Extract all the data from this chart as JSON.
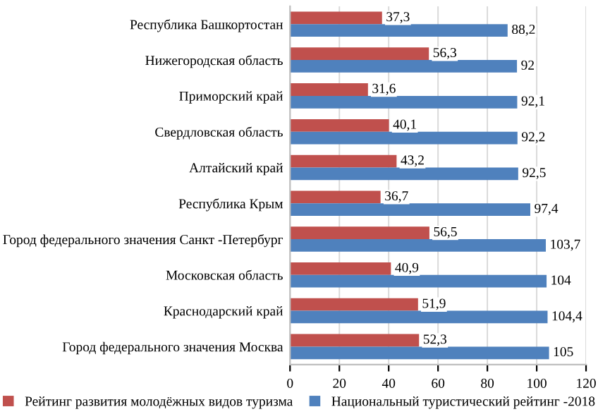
{
  "chart_data": {
    "type": "bar",
    "orientation": "horizontal",
    "categories": [
      "Республика Башкортостан",
      "Нижегородская область",
      "Приморский край",
      "Свердловская область",
      "Алтайский край",
      "Республика Крым",
      "Город федерального значения Санкт -Петербург",
      "Московская область",
      "Краснодарский край",
      "Город федерального значения Москва"
    ],
    "series": [
      {
        "name": "Рейтинг развития молодёжных видов туризма",
        "color": "#c0504d",
        "values": [
          37.3,
          56.3,
          31.6,
          40.1,
          43.2,
          36.7,
          56.5,
          40.9,
          51.9,
          52.3
        ],
        "value_labels": [
          "37,3",
          "56,3",
          "31,6",
          "40,1",
          "43,2",
          "36,7",
          "56,5",
          "40,9",
          "51,9",
          "52,3"
        ]
      },
      {
        "name": "Национальный туристический рейтинг -2018",
        "color": "#4f81bd",
        "values": [
          88.2,
          92,
          92.1,
          92.2,
          92.5,
          97.4,
          103.7,
          104,
          104.4,
          105
        ],
        "value_labels": [
          "88,2",
          "92",
          "92,1",
          "92,2",
          "92,5",
          "97,4",
          "103,7",
          "104",
          "104,4",
          "105"
        ]
      }
    ],
    "xlim": [
      0,
      120
    ],
    "xticks": [
      0,
      20,
      40,
      60,
      80,
      100,
      120
    ],
    "grid": "x",
    "legend": "bottom"
  }
}
